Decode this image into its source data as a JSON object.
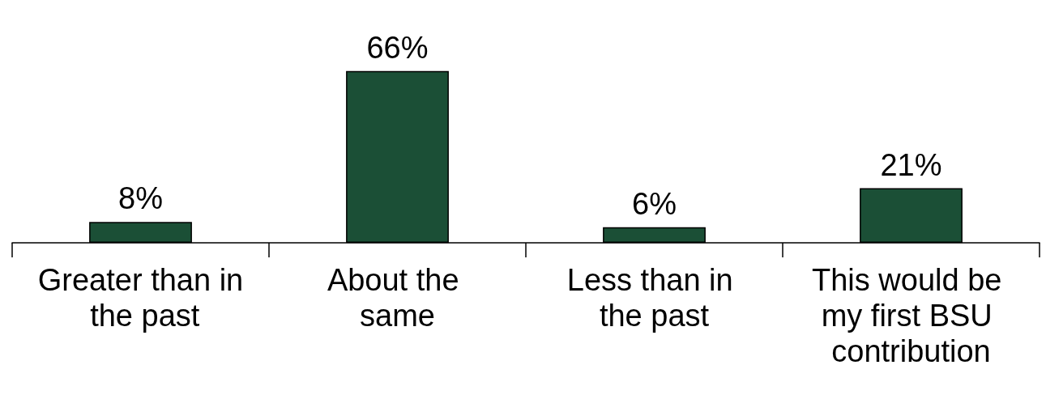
{
  "chart_data": {
    "type": "bar",
    "categories": [
      "Greater than in the past",
      "About the same",
      "Less than in the past",
      "This would be my first BSU contribution"
    ],
    "values": [
      8,
      66,
      6,
      21
    ],
    "value_labels": [
      "8%",
      "66%",
      "6%",
      "21%"
    ],
    "color": "#1b4f36"
  }
}
